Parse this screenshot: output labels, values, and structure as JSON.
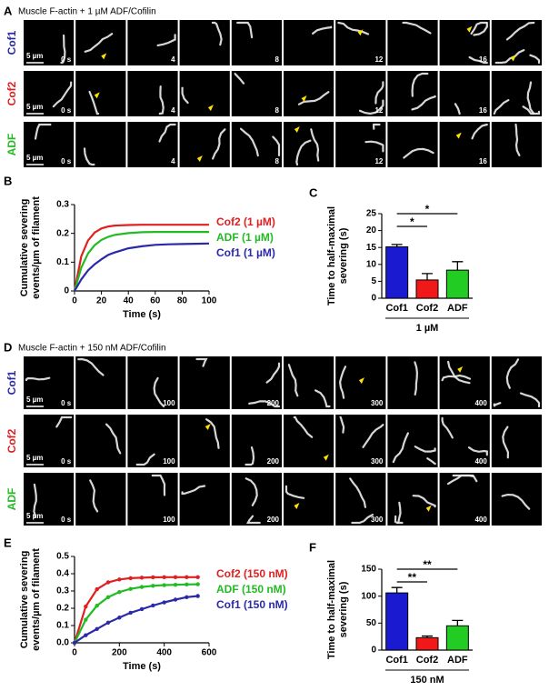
{
  "figure": {
    "panel_a": {
      "letter": "A",
      "title": "Muscle F-actin + 1 µM ADF/Cofilin",
      "rows": [
        {
          "label": "Cof1",
          "color": "#2a2aa8"
        },
        {
          "label": "Cof2",
          "color": "#e02020"
        },
        {
          "label": "ADF",
          "color": "#22bb22"
        }
      ],
      "scale_bar": "5 µm",
      "time_labels": [
        "0 s",
        "4",
        "8",
        "12",
        "16"
      ]
    },
    "panel_d": {
      "letter": "D",
      "title": "Muscle F-actin + 150 nM ADF/Cofilin",
      "rows": [
        {
          "label": "Cof1",
          "color": "#2a2aa8"
        },
        {
          "label": "Cof2",
          "color": "#e02020"
        },
        {
          "label": "ADF",
          "color": "#22bb22"
        }
      ],
      "scale_bar": "5 µm",
      "time_labels": [
        "0 s",
        "100",
        "200",
        "300",
        "400"
      ]
    }
  },
  "chart_data": [
    {
      "type": "line",
      "letter": "B",
      "xlabel": "Time (s)",
      "ylabel": [
        "Cumulative severing",
        "events/µm of filament"
      ],
      "x": [
        0,
        5,
        10,
        15,
        20,
        25,
        30,
        40,
        50,
        60,
        70,
        80,
        90,
        100
      ],
      "series": [
        {
          "name": "Cof2 (1 µM)",
          "color": "#e02020",
          "values": [
            0,
            0.12,
            0.175,
            0.203,
            0.217,
            0.224,
            0.227,
            0.229,
            0.23,
            0.23,
            0.23,
            0.23,
            0.23,
            0.23
          ]
        },
        {
          "name": "ADF (1 µM)",
          "color": "#22bb22",
          "values": [
            0,
            0.081,
            0.13,
            0.159,
            0.177,
            0.188,
            0.195,
            0.201,
            0.204,
            0.205,
            0.205,
            0.205,
            0.205,
            0.205
          ]
        },
        {
          "name": "Cof1 (1 µM)",
          "color": "#2a2aa8",
          "values": [
            0,
            0.04,
            0.071,
            0.093,
            0.11,
            0.125,
            0.134,
            0.148,
            0.155,
            0.16,
            0.162,
            0.163,
            0.164,
            0.165
          ]
        }
      ],
      "xlim": [
        0,
        100
      ],
      "xticks": [
        0,
        20,
        40,
        60,
        80,
        100
      ],
      "ylim": [
        0,
        0.3
      ],
      "yticks": [
        0,
        0.1,
        0.2,
        0.3
      ],
      "markers": false
    },
    {
      "type": "bar",
      "letter": "C",
      "ylabel": [
        "Time to half-maximal",
        "severing (s)"
      ],
      "categories": [
        "Cof1",
        "Cof2",
        "ADF"
      ],
      "values": [
        15.2,
        5.4,
        8.3
      ],
      "errors": [
        0.7,
        1.9,
        2.5
      ],
      "colors": [
        "#1a1ad0",
        "#f01818",
        "#22cc22"
      ],
      "group_label": "1 µM",
      "significance": [
        {
          "pair": [
            "Cof1",
            "Cof2"
          ],
          "label": "*"
        },
        {
          "pair": [
            "Cof1",
            "ADF"
          ],
          "label": "*"
        }
      ],
      "ylim": [
        0,
        25
      ],
      "yticks": [
        0,
        5,
        10,
        15,
        20,
        25
      ]
    },
    {
      "type": "line",
      "letter": "E",
      "xlabel": "Time (s)",
      "ylabel": [
        "Cumulative severing",
        "events/µm of filament"
      ],
      "x": [
        0,
        50,
        100,
        150,
        200,
        250,
        300,
        350,
        400,
        450,
        500,
        550
      ],
      "series": [
        {
          "name": "Cof2 (150 nM)",
          "color": "#e02020",
          "values": [
            0,
            0.21,
            0.31,
            0.35,
            0.367,
            0.374,
            0.377,
            0.379,
            0.38,
            0.38,
            0.38,
            0.38
          ]
        },
        {
          "name": "ADF (150 nM)",
          "color": "#22bb22",
          "values": [
            0,
            0.134,
            0.215,
            0.264,
            0.294,
            0.312,
            0.323,
            0.33,
            0.334,
            0.336,
            0.338,
            0.339
          ]
        },
        {
          "name": "Cof1 (150 nM)",
          "color": "#2a2aa8",
          "values": [
            0,
            0.044,
            0.08,
            0.117,
            0.146,
            0.174,
            0.195,
            0.216,
            0.234,
            0.25,
            0.264,
            0.271
          ]
        }
      ],
      "xlim": [
        0,
        600
      ],
      "xticks": [
        0,
        200,
        400,
        600
      ],
      "ylim": [
        0,
        0.5
      ],
      "yticks": [
        {
          "value": 0,
          "label": "0.0"
        },
        0.1,
        0.2,
        0.3,
        0.4,
        0.5
      ],
      "markers": true
    },
    {
      "type": "bar",
      "letter": "F",
      "ylabel": [
        "Time to half-maximal",
        "severing (s)"
      ],
      "categories": [
        "Cof1",
        "Cof2",
        "ADF"
      ],
      "values": [
        106,
        23,
        45
      ],
      "errors": [
        10,
        3,
        10
      ],
      "colors": [
        "#1a1ad0",
        "#f01818",
        "#22cc22"
      ],
      "group_label": "150 nM",
      "significance": [
        {
          "pair": [
            "Cof1",
            "Cof2"
          ],
          "label": "**"
        },
        {
          "pair": [
            "Cof1",
            "ADF"
          ],
          "label": "**"
        }
      ],
      "ylim": [
        0,
        150
      ],
      "yticks": [
        0,
        50,
        100,
        150
      ]
    }
  ]
}
